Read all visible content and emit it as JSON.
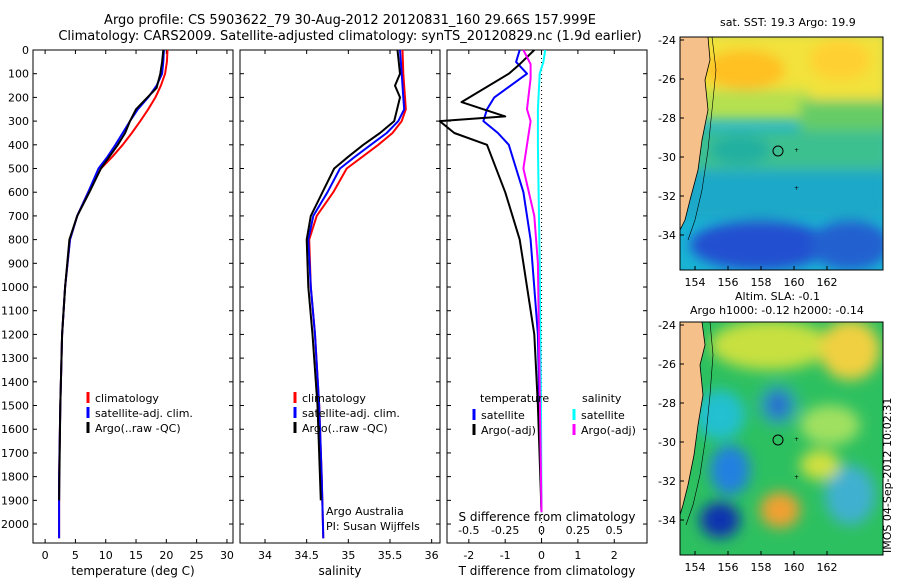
{
  "header": {
    "line1": "Argo profile: CS 5903622_79 30-Aug-2012 20120831_160 29.66S 157.999E",
    "line2": "Climatology: CARS2009. Satellite-adjusted climatology: synTS_20120829.nc (1.9d earlier)"
  },
  "stamp": "IMOS 04-Sep-2012 10:02:31",
  "colors": {
    "climatology": "#ff0000",
    "satellite": "#0000ff",
    "argo": "#000000",
    "sal_satellite": "#00ffff",
    "sal_argo": "#ff00ff"
  },
  "chart_data": [
    {
      "type": "line",
      "name": "temperature-profile",
      "xlabel": "temperature (deg C)",
      "ylabel": "",
      "xlim": [
        -2,
        31
      ],
      "ylim": [
        2080,
        0
      ],
      "xticks": [
        "0",
        "5",
        "10",
        "15",
        "20",
        "25",
        "30"
      ],
      "yticks": [
        "0",
        "100",
        "200",
        "300",
        "400",
        "500",
        "600",
        "700",
        "800",
        "900",
        "1000",
        "1100",
        "1200",
        "1300",
        "1400",
        "1500",
        "1600",
        "1700",
        "1800",
        "1900",
        "2000"
      ],
      "legend": [
        "climatology",
        "satellite-adj. clim.",
        "Argo(..raw -QC)"
      ],
      "series": [
        {
          "name": "climatology",
          "color": "#ff0000",
          "x": [
            20.2,
            20.1,
            19.8,
            19.1,
            18.2,
            17.0,
            15.7,
            14.3,
            12.8,
            11.1,
            9.2,
            7.1,
            5.3,
            4.1,
            3.3,
            2.8,
            2.5,
            2.3,
            2.3
          ],
          "y": [
            0,
            50,
            100,
            150,
            200,
            250,
            300,
            350,
            400,
            450,
            500,
            600,
            700,
            800,
            1000,
            1200,
            1500,
            1800,
            2060
          ]
        },
        {
          "name": "satellite-adj. clim.",
          "color": "#0000ff",
          "x": [
            19.6,
            19.5,
            19.3,
            18.4,
            17.0,
            15.3,
            14.0,
            12.8,
            11.6,
            10.3,
            8.8,
            7.1,
            5.3,
            4.1,
            3.3,
            2.8,
            2.5,
            2.3,
            2.3
          ],
          "y": [
            0,
            50,
            100,
            150,
            200,
            250,
            300,
            350,
            400,
            450,
            500,
            600,
            700,
            800,
            1000,
            1200,
            1500,
            1800,
            2060
          ]
        },
        {
          "name": "Argo(..raw -QC)",
          "color": "#000000",
          "x": [
            19.5,
            19.3,
            19.0,
            18.4,
            16.5,
            15.0,
            14.0,
            13.2,
            12.0,
            10.6,
            9.2,
            7.3,
            5.3,
            4.0,
            3.3,
            2.8,
            2.5,
            2.3
          ],
          "y": [
            0,
            50,
            100,
            160,
            210,
            250,
            300,
            350,
            400,
            450,
            500,
            600,
            700,
            800,
            1000,
            1200,
            1500,
            1900
          ]
        }
      ]
    },
    {
      "type": "line",
      "name": "salinity-profile",
      "xlabel": "salinity",
      "ylabel": "",
      "xlim": [
        33.7,
        36.1
      ],
      "ylim": [
        2080,
        0
      ],
      "xticks": [
        "34",
        "34.5",
        "35",
        "35.5",
        "36"
      ],
      "legend": [
        "climatology",
        "satellite-adj. clim.",
        "Argo(..raw -QC)"
      ],
      "annotations": [
        "Argo Australia",
        "PI: Susan Wijffels"
      ],
      "series": [
        {
          "name": "climatology",
          "color": "#ff0000",
          "x": [
            35.65,
            35.66,
            35.68,
            35.69,
            35.64,
            35.53,
            35.36,
            35.17,
            34.98,
            34.82,
            34.62,
            34.53,
            34.55,
            34.6,
            34.65,
            34.68,
            34.7
          ],
          "y": [
            0,
            100,
            200,
            250,
            300,
            350,
            400,
            450,
            500,
            600,
            700,
            800,
            1000,
            1200,
            1500,
            1800,
            2060
          ]
        },
        {
          "name": "satellite-adj. clim.",
          "color": "#0000ff",
          "x": [
            35.62,
            35.64,
            35.66,
            35.67,
            35.6,
            35.46,
            35.27,
            35.08,
            34.9,
            34.75,
            34.58,
            34.52,
            34.55,
            34.6,
            34.65,
            34.68,
            34.7
          ],
          "y": [
            0,
            100,
            200,
            250,
            300,
            350,
            400,
            450,
            500,
            600,
            700,
            800,
            1000,
            1200,
            1500,
            1800,
            2060
          ]
        },
        {
          "name": "Argo(..raw -QC)",
          "color": "#000000",
          "x": [
            35.59,
            35.62,
            35.56,
            35.62,
            35.55,
            35.38,
            35.18,
            35.0,
            34.83,
            34.69,
            34.55,
            34.5,
            34.52,
            34.57,
            34.63,
            34.67
          ],
          "y": [
            0,
            100,
            150,
            200,
            300,
            350,
            400,
            450,
            500,
            600,
            700,
            800,
            1000,
            1200,
            1500,
            1900
          ]
        }
      ]
    },
    {
      "type": "line",
      "name": "difference-profile",
      "xlabel": "T difference from climatology",
      "xlabel2": "S difference from climatology",
      "xlim": [
        -2.6,
        2.9
      ],
      "ylim": [
        2080,
        0
      ],
      "xticks": [
        "-2",
        "-1",
        "0",
        "1",
        "2"
      ],
      "xticks2": [
        "-0.5",
        "-0.25",
        "0",
        "0.25",
        "0.5"
      ],
      "legend_headers": [
        "temperature",
        "salinity"
      ],
      "legend": [
        "satellite",
        "Argo(-adj)",
        "satellite",
        "Argo(-adj)"
      ],
      "series": [
        {
          "name": "satellite",
          "group": "temperature",
          "color": "#0000ff",
          "x": [
            -0.6,
            -0.7,
            -0.4,
            -1.3,
            -1.5,
            -1.6,
            -1.2,
            -0.9,
            -0.7,
            -0.5,
            -0.3,
            -0.1,
            0.0
          ],
          "y": [
            0,
            50,
            100,
            200,
            250,
            300,
            350,
            400,
            500,
            600,
            800,
            1200,
            1950
          ]
        },
        {
          "name": "Argo(-adj)",
          "group": "temperature",
          "color": "#000000",
          "x": [
            -0.2,
            -0.6,
            -0.9,
            -2.2,
            -1.0,
            -2.8,
            -2.4,
            -1.5,
            -1.3,
            -1.0,
            -0.8,
            -0.6,
            -0.5,
            -0.2,
            -0.1,
            0.0
          ],
          "y": [
            0,
            60,
            100,
            220,
            280,
            300,
            350,
            400,
            480,
            600,
            700,
            800,
            900,
            1200,
            1500,
            1950
          ]
        },
        {
          "name": "satellite",
          "group": "salinity",
          "color": "#00ffff",
          "x": [
            0.1,
            0.05,
            -0.05,
            -0.1,
            -0.1,
            -0.08,
            -0.05,
            -0.02,
            0.0
          ],
          "y": [
            0,
            50,
            100,
            250,
            400,
            600,
            900,
            1400,
            1950
          ]
        },
        {
          "name": "Argo(-adj)",
          "group": "salinity",
          "color": "#ff00ff",
          "x": [
            -0.5,
            -0.3,
            -0.3,
            -0.4,
            -0.3,
            -0.5,
            -0.2,
            -0.1,
            0.0
          ],
          "y": [
            0,
            60,
            120,
            250,
            300,
            500,
            700,
            900,
            1950
          ]
        }
      ]
    }
  ],
  "maps": [
    {
      "title": "sat. SST: 19.3 Argo: 19.9",
      "subtitle": "",
      "xticks": [
        "154",
        "156",
        "158",
        "160",
        "162"
      ],
      "yticks": [
        "-24",
        "-26",
        "-28",
        "-30",
        "-32",
        "-34"
      ]
    },
    {
      "title": "Altim. SLA: -0.1",
      "subtitle": "Argo h1000: -0.12 h2000: -0.14",
      "xticks": [
        "154",
        "156",
        "158",
        "160",
        "162"
      ],
      "yticks": [
        "-24",
        "-26",
        "-28",
        "-30",
        "-32",
        "-34"
      ]
    }
  ]
}
